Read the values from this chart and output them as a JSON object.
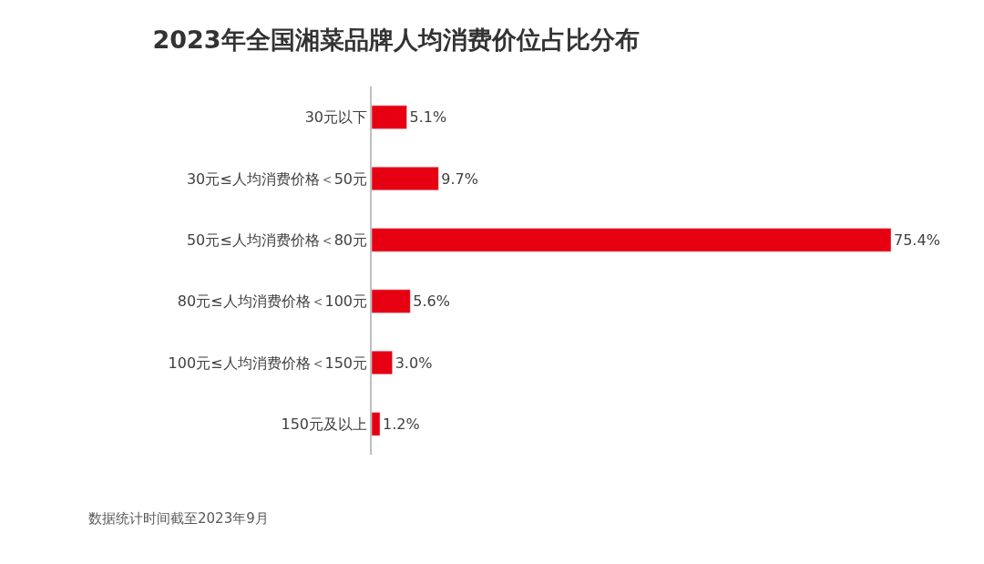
{
  "chart_data": {
    "type": "bar",
    "orientation": "horizontal",
    "title": "2023年全国湘菜品牌人均消费价位占比分布",
    "categories": [
      "30元以下",
      "30元≤人均消费价格＜50元",
      "50元≤人均消费价格＜80元",
      "80元≤人均消费价格＜100元",
      "100元≤人均消费价格＜150元",
      "150元及以上"
    ],
    "values": [
      5.1,
      9.7,
      75.4,
      5.6,
      3.0,
      1.2
    ],
    "value_labels": [
      "5.1%",
      "9.7%",
      "75.4%",
      "5.6%",
      "3.0%",
      "1.2%"
    ],
    "color": "#e60012",
    "annotations": [
      "数据统计时间截至2023年9月"
    ]
  }
}
